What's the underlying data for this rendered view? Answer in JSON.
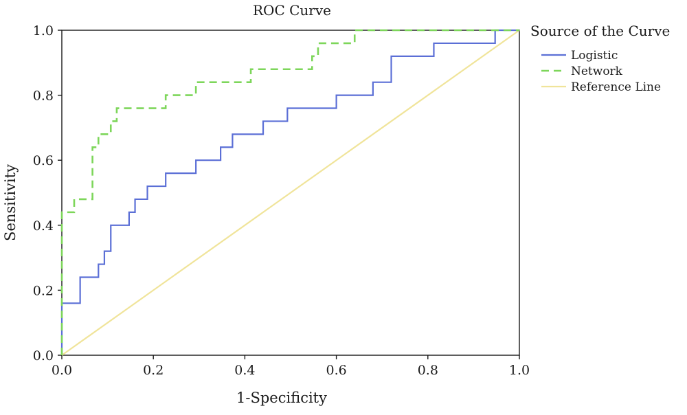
{
  "chart_data": {
    "type": "line",
    "title": "ROC Curve",
    "xlabel": "1-Specificity",
    "ylabel": "Sensitivity",
    "xlim": [
      0.0,
      1.0
    ],
    "ylim": [
      0.0,
      1.0
    ],
    "xticks": [
      "0.0",
      "0.2",
      "0.4",
      "0.6",
      "0.8",
      "1.0"
    ],
    "yticks": [
      "0.0",
      "0.2",
      "0.4",
      "0.6",
      "0.8",
      "1.0"
    ],
    "legend_title": "Source of the Curve",
    "legend_position": "right",
    "grid": false,
    "series": [
      {
        "name": "Logistic",
        "color": "#5b6fd6",
        "style": "solid",
        "points": [
          [
            0.0,
            0.0
          ],
          [
            0.0,
            0.16
          ],
          [
            0.04,
            0.16
          ],
          [
            0.04,
            0.24
          ],
          [
            0.08,
            0.24
          ],
          [
            0.08,
            0.28
          ],
          [
            0.093,
            0.28
          ],
          [
            0.093,
            0.32
          ],
          [
            0.107,
            0.32
          ],
          [
            0.107,
            0.4
          ],
          [
            0.147,
            0.4
          ],
          [
            0.147,
            0.44
          ],
          [
            0.16,
            0.44
          ],
          [
            0.16,
            0.48
          ],
          [
            0.187,
            0.48
          ],
          [
            0.187,
            0.52
          ],
          [
            0.227,
            0.52
          ],
          [
            0.227,
            0.56
          ],
          [
            0.293,
            0.56
          ],
          [
            0.293,
            0.6
          ],
          [
            0.347,
            0.6
          ],
          [
            0.347,
            0.64
          ],
          [
            0.373,
            0.64
          ],
          [
            0.373,
            0.68
          ],
          [
            0.44,
            0.68
          ],
          [
            0.44,
            0.72
          ],
          [
            0.493,
            0.72
          ],
          [
            0.493,
            0.76
          ],
          [
            0.6,
            0.76
          ],
          [
            0.6,
            0.8
          ],
          [
            0.68,
            0.8
          ],
          [
            0.68,
            0.84
          ],
          [
            0.72,
            0.84
          ],
          [
            0.72,
            0.92
          ],
          [
            0.813,
            0.92
          ],
          [
            0.813,
            0.96
          ],
          [
            0.947,
            0.96
          ],
          [
            0.947,
            1.0
          ],
          [
            1.0,
            1.0
          ]
        ]
      },
      {
        "name": "Network",
        "color": "#7dd65a",
        "style": "dashed",
        "points": [
          [
            0.0,
            0.0
          ],
          [
            0.0,
            0.44
          ],
          [
            0.027,
            0.44
          ],
          [
            0.027,
            0.48
          ],
          [
            0.067,
            0.48
          ],
          [
            0.067,
            0.64
          ],
          [
            0.08,
            0.64
          ],
          [
            0.08,
            0.68
          ],
          [
            0.107,
            0.68
          ],
          [
            0.107,
            0.72
          ],
          [
            0.12,
            0.72
          ],
          [
            0.12,
            0.76
          ],
          [
            0.227,
            0.76
          ],
          [
            0.227,
            0.8
          ],
          [
            0.293,
            0.8
          ],
          [
            0.293,
            0.84
          ],
          [
            0.413,
            0.84
          ],
          [
            0.413,
            0.88
          ],
          [
            0.547,
            0.88
          ],
          [
            0.547,
            0.92
          ],
          [
            0.56,
            0.92
          ],
          [
            0.56,
            0.96
          ],
          [
            0.64,
            0.96
          ],
          [
            0.64,
            1.0
          ],
          [
            1.0,
            1.0
          ]
        ]
      },
      {
        "name": "Reference Line",
        "color": "#f0e49a",
        "style": "solid",
        "points": [
          [
            0.0,
            0.0
          ],
          [
            1.0,
            1.0
          ]
        ]
      }
    ]
  }
}
